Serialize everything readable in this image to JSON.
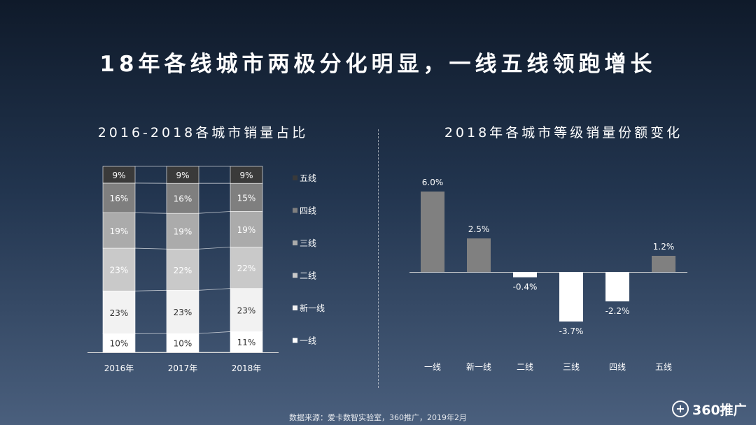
{
  "title": "18年各线城市两极分化明显，一线五线领跑增长",
  "source": "数据来源：爱卡数智实验室，360推广，2019年2月",
  "logo": {
    "mark": "+",
    "text": "360推广"
  },
  "chart_data": [
    {
      "type": "bar",
      "stacked": true,
      "title": "2016-2018各城市销量占比",
      "categories": [
        "2016年",
        "2017年",
        "2018年"
      ],
      "series": [
        {
          "name": "一线",
          "values": [
            10,
            10,
            11
          ],
          "labels": [
            "10%",
            "10%",
            "11%"
          ],
          "color": "#ffffff",
          "label_color": "#333333"
        },
        {
          "name": "新一线",
          "values": [
            23,
            23,
            23
          ],
          "labels": [
            "23%",
            "23%",
            "23%"
          ],
          "color": "#f2f2f2",
          "label_color": "#333333"
        },
        {
          "name": "二线",
          "values": [
            23,
            22,
            22
          ],
          "labels": [
            "23%",
            "22%",
            "22%"
          ],
          "color": "#c9c9c9",
          "label_color": "#ffffff"
        },
        {
          "name": "三线",
          "values": [
            19,
            19,
            19
          ],
          "labels": [
            "19%",
            "19%",
            "19%"
          ],
          "color": "#ababab",
          "label_color": "#ffffff"
        },
        {
          "name": "四线",
          "values": [
            16,
            16,
            15
          ],
          "labels": [
            "16%",
            "16%",
            "15%"
          ],
          "color": "#7f7f7f",
          "label_color": "#ffffff"
        },
        {
          "name": "五线",
          "values": [
            9,
            9,
            9
          ],
          "labels": [
            "9%",
            "9%",
            "9%"
          ],
          "color": "#3a3a3a",
          "label_color": "#ffffff"
        }
      ],
      "legend_order": [
        "五线",
        "四线",
        "三线",
        "二线",
        "新一线",
        "一线"
      ],
      "legend": "right"
    },
    {
      "type": "bar",
      "title": "2018年各城市等级销量份额变化",
      "categories": [
        "一线",
        "新一线",
        "二线",
        "三线",
        "四线",
        "五线"
      ],
      "values": [
        6.0,
        2.5,
        -0.4,
        -3.7,
        -2.2,
        1.2
      ],
      "labels": [
        "6.0%",
        "2.5%",
        "-0.4%",
        "-3.7%",
        "-2.2%",
        "1.2%"
      ],
      "positive_color": "#808080",
      "negative_color": "#ffffff",
      "legend": "none"
    }
  ]
}
